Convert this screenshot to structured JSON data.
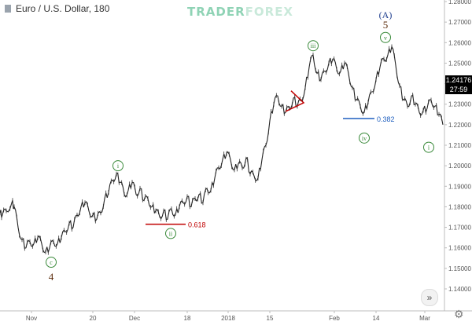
{
  "header": {
    "title": "Euro / U.S. Dollar, 180",
    "watermark_a": "TRADER",
    "watermark_b": "FOREX"
  },
  "price_tags": {
    "last_price": "1.24176",
    "countdown": "27:59"
  },
  "controls": {
    "scroll_icon": "double-chevron-right-icon",
    "settings_icon": "gear-icon"
  },
  "chart_data": {
    "type": "line",
    "instrument": "Euro / U.S. Dollar",
    "timeframe": "180",
    "ylim": [
      1.14,
      1.28
    ],
    "y_ticks": [
      "1.28000",
      "1.27000",
      "1.26000",
      "1.25000",
      "1.24000",
      "1.23000",
      "1.22000",
      "1.21000",
      "1.20000",
      "1.19000",
      "1.18000",
      "1.17000",
      "1.16000",
      "1.15000",
      "1.14000"
    ],
    "x_ticks": [
      "Nov",
      "20",
      "Dec",
      "18",
      "2018",
      "15",
      "Feb",
      "14",
      "Mar"
    ],
    "series": [
      {
        "x": [
          0,
          3,
          8,
          15,
          18,
          23,
          28,
          33,
          38,
          43,
          48,
          53,
          58,
          63,
          68,
          73,
          78,
          83,
          88,
          93,
          98,
          103,
          108,
          113,
          118,
          123,
          128,
          133,
          138,
          143,
          148,
          153,
          158,
          163,
          168,
          173,
          178,
          183,
          188,
          193,
          198,
          203,
          208,
          213,
          218,
          223,
          228,
          233,
          238,
          243,
          248,
          253,
          258,
          263,
          268,
          273,
          278,
          283,
          288,
          293,
          298,
          303,
          308,
          313,
          318,
          323,
          328,
          333,
          338,
          343,
          348,
          353,
          358,
          363,
          368,
          373,
          378,
          383,
          388,
          393,
          398,
          403,
          408,
          413,
          418,
          423,
          428,
          433,
          438,
          443,
          448,
          453,
          458,
          463,
          468,
          473,
          478,
          483,
          488,
          493,
          498,
          503,
          508,
          513,
          518,
          523,
          528,
          533,
          538,
          543,
          548,
          553,
          558,
          563
        ],
        "y": [
          1.177,
          1.176,
          1.178,
          1.182,
          1.18,
          1.17,
          1.164,
          1.16,
          1.163,
          1.162,
          1.165,
          1.162,
          1.158,
          1.16,
          1.163,
          1.162,
          1.165,
          1.168,
          1.172,
          1.17,
          1.176,
          1.18,
          1.182,
          1.178,
          1.176,
          1.174,
          1.177,
          1.184,
          1.187,
          1.193,
          1.196,
          1.192,
          1.186,
          1.188,
          1.192,
          1.186,
          1.189,
          1.183,
          1.184,
          1.18,
          1.178,
          1.175,
          1.178,
          1.174,
          1.179,
          1.176,
          1.18,
          1.182,
          1.185,
          1.18,
          1.184,
          1.186,
          1.182,
          1.189,
          1.188,
          1.194,
          1.199,
          1.203,
          1.206,
          1.203,
          1.198,
          1.201,
          1.199,
          1.204,
          1.196,
          1.195,
          1.194,
          1.203,
          1.21,
          1.222,
          1.23,
          1.234,
          1.229,
          1.226,
          1.228,
          1.233,
          1.229,
          1.232,
          1.238,
          1.248,
          1.254,
          1.245,
          1.242,
          1.246,
          1.25,
          1.252,
          1.247,
          1.246,
          1.25,
          1.245,
          1.238,
          1.232,
          1.229,
          1.226,
          1.231,
          1.236,
          1.242,
          1.248,
          1.252,
          1.254,
          1.258,
          1.249,
          1.239,
          1.232,
          1.229,
          1.234,
          1.23,
          1.226,
          1.227,
          1.228,
          1.232,
          1.229,
          1.225,
          1.22
        ]
      }
    ],
    "annotations": [
      {
        "label": "c",
        "sub": "4",
        "x": 65,
        "y": 1.153,
        "style": "circle-below"
      },
      {
        "label": "i",
        "x": 150,
        "y": 1.2,
        "style": "circle-above"
      },
      {
        "label": "ii",
        "x": 217,
        "y": 1.167,
        "style": "circle-below"
      },
      {
        "label": "iii",
        "x": 398,
        "y": 1.2585,
        "style": "circle-above"
      },
      {
        "label": "iv",
        "x": 463,
        "y": 1.2135,
        "style": "circle-below"
      },
      {
        "label": "v",
        "x": 490,
        "y": 1.2625,
        "style": "circle-above",
        "super": "5",
        "super2": "(A)"
      },
      {
        "label": "i",
        "x": 545,
        "y": 1.209,
        "style": "circle-below"
      }
    ],
    "levels": [
      {
        "label": "0.618",
        "x1": 185,
        "x2": 236,
        "y": 1.1715,
        "color": "#c00000"
      },
      {
        "label": "0.382",
        "x1": 436,
        "x2": 476,
        "y": 1.223,
        "color": "#1f5fbf"
      }
    ],
    "wedge": {
      "points": [
        [
          363,
          1.2265
        ],
        [
          386,
          1.2307
        ],
        [
          370,
          1.2365
        ]
      ],
      "color": "#c00000"
    }
  }
}
